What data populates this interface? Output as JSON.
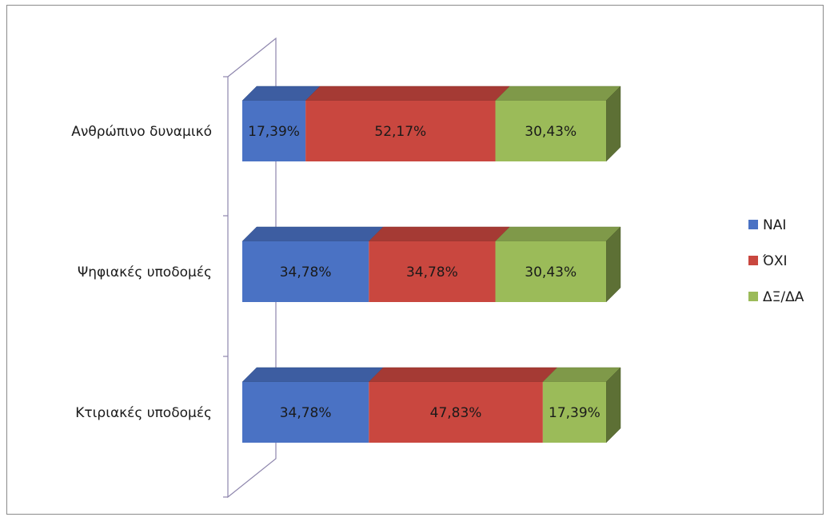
{
  "chart_data": {
    "type": "bar",
    "orientation": "horizontal",
    "stacked": true,
    "percent_stacked": true,
    "style_3d": true,
    "categories": [
      "Ανθρώπινο δυναμικό",
      "Ψηφιακές υποδομές",
      "Κτιριακές υποδομές"
    ],
    "series": [
      {
        "name": "ΝΑΙ",
        "values": [
          17.39,
          34.78,
          34.78
        ],
        "labels": [
          "17,39%",
          "34,78%",
          "34,78%"
        ],
        "color": "#4a72c4"
      },
      {
        "name": "ΌΧΙ",
        "values": [
          52.17,
          34.78,
          47.83
        ],
        "labels": [
          "52,17%",
          "34,78%",
          "47,83%"
        ],
        "color": "#c9473f"
      },
      {
        "name": "ΔΞ/ΔΑ",
        "values": [
          30.43,
          30.43,
          17.39
        ],
        "labels": [
          "30,43%",
          "30,43%",
          "17,39%"
        ],
        "color": "#9bbb59"
      }
    ],
    "title": "",
    "xlabel": "",
    "ylabel": "",
    "xlim": [
      0,
      100
    ],
    "grid": false,
    "legend_position": "right"
  }
}
